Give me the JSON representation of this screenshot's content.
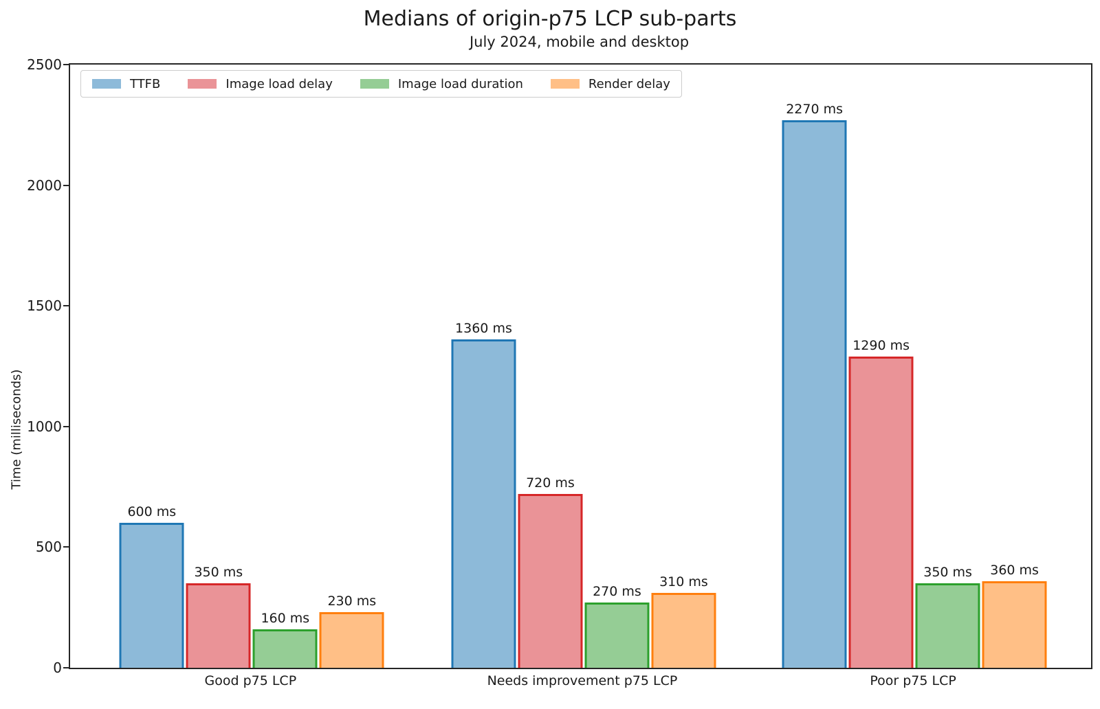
{
  "title": "Medians of origin-p75 LCP sub-parts",
  "subtitle": "July 2024, mobile and desktop",
  "chart_data": {
    "type": "bar",
    "title": "Medians of origin-p75 LCP sub-parts",
    "subtitle": "July 2024, mobile and desktop",
    "categories": [
      "Good p75 LCP",
      "Needs improvement p75 LCP",
      "Poor p75 LCP"
    ],
    "series": [
      {
        "name": "TTFB",
        "fill_color": "#8dbad9",
        "edge_color": "#1f77b4",
        "values": [
          600,
          1360,
          2270
        ],
        "labels": [
          "600 ms",
          "1360 ms",
          "2270 ms"
        ]
      },
      {
        "name": "Image load delay",
        "fill_color": "#ea9397",
        "edge_color": "#d62728",
        "values": [
          350,
          720,
          1290
        ],
        "labels": [
          "350 ms",
          "720 ms",
          "1290 ms"
        ]
      },
      {
        "name": "Image load duration",
        "fill_color": "#95cd95",
        "edge_color": "#2ca02c",
        "values": [
          160,
          270,
          350
        ],
        "labels": [
          "160 ms",
          "270 ms",
          "350 ms"
        ]
      },
      {
        "name": "Render delay",
        "fill_color": "#ffbf86",
        "edge_color": "#ff7f0e",
        "values": [
          230,
          310,
          360
        ],
        "labels": [
          "230 ms",
          "310 ms",
          "360 ms"
        ]
      }
    ],
    "ylabel": "Time (milliseconds)",
    "ylim": [
      0,
      2500
    ],
    "yticks": [
      0,
      500,
      1000,
      1500,
      2000,
      2500
    ],
    "xlabel": "",
    "grid": false,
    "legend_position": "upper left",
    "value_suffix": " ms"
  }
}
